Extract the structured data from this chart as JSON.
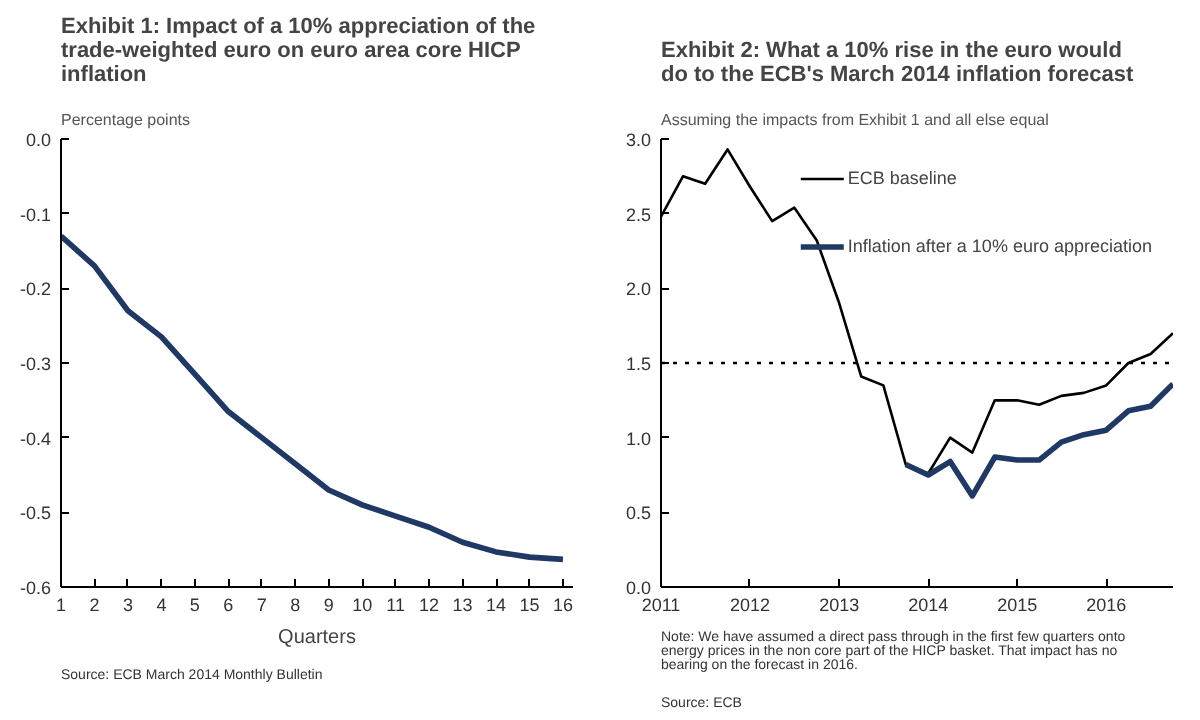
{
  "chart_data": [
    {
      "type": "line",
      "title": "Exhibit 1: Impact of a 10% appreciation of the trade-weighted euro on euro area core HICP inflation",
      "subtitle": "Percentage points",
      "xlabel": "Quarters",
      "x": [
        1,
        2,
        3,
        4,
        5,
        6,
        7,
        8,
        9,
        10,
        11,
        12,
        13,
        14,
        15,
        16
      ],
      "series": [
        {
          "color": "#1f3864",
          "values": [
            -0.13,
            -0.17,
            -0.23,
            -0.265,
            -0.315,
            -0.365,
            -0.4,
            -0.435,
            -0.47,
            -0.49,
            -0.505,
            -0.52,
            -0.54,
            -0.553,
            -0.56,
            -0.563
          ]
        }
      ],
      "xlim": [
        1,
        16.3
      ],
      "xticks": [
        1,
        2,
        3,
        4,
        5,
        6,
        7,
        8,
        9,
        10,
        11,
        12,
        13,
        14,
        15,
        16
      ],
      "ylim": [
        -0.6,
        0
      ],
      "yticks": [
        {
          "value": 0,
          "label": "0.0"
        },
        -0.1,
        -0.2,
        -0.3,
        -0.4,
        -0.5,
        -0.6
      ],
      "grid": false,
      "legend": false,
      "annotations": [
        "Source: ECB March 2014 Monthly Bulletin"
      ]
    },
    {
      "type": "line",
      "title": "Exhibit 2: What a 10% rise in the euro would do to the ECB's March 2014 inflation forecast",
      "subtitle": "Assuming the impacts from Exhibit 1 and all else equal",
      "x": [
        "2011-01",
        "2011-04",
        "2011-07",
        "2011-10",
        "2012-01",
        "2012-04",
        "2012-07",
        "2012-10",
        "2013-01",
        "2013-04",
        "2013-07",
        "2013-10",
        "2014-01",
        "2014-04",
        "2014-07",
        "2014-10",
        "2015-01",
        "2015-04",
        "2015-07",
        "2015-10",
        "2016-01",
        "2016-04",
        "2016-07",
        "2016-10"
      ],
      "series": [
        {
          "name": "ECB baseline",
          "color": "#000000",
          "values": [
            2.48,
            2.75,
            2.7,
            2.93,
            2.68,
            2.45,
            2.54,
            2.32,
            1.9,
            1.41,
            1.35,
            0.82,
            0.76,
            1.0,
            0.9,
            1.25,
            1.25,
            1.22,
            1.28,
            1.3,
            1.35,
            1.5,
            1.56,
            1.7
          ]
        },
        {
          "name": "Inflation after a 10% euro appreciation",
          "color": "#1f3864",
          "values": [
            null,
            null,
            null,
            null,
            null,
            null,
            null,
            null,
            null,
            null,
            null,
            0.82,
            0.75,
            0.84,
            0.61,
            0.87,
            0.85,
            0.85,
            0.97,
            1.02,
            1.05,
            1.18,
            1.21,
            1.36
          ]
        }
      ],
      "xlim": [
        "2011-01",
        "2016-10"
      ],
      "xticks": [
        {
          "value": "2011-01",
          "label": "2011"
        },
        {
          "value": "2012-01",
          "label": "2012"
        },
        {
          "value": "2013-01",
          "label": "2013"
        },
        {
          "value": "2014-01",
          "label": "2014"
        },
        {
          "value": "2015-01",
          "label": "2015"
        },
        {
          "value": "2016-01",
          "label": "2016"
        }
      ],
      "ylim": [
        0,
        3
      ],
      "yticks": [
        {
          "value": 0,
          "label": "0.0"
        },
        {
          "value": 0.5,
          "label": "0.5"
        },
        {
          "value": 1,
          "label": "1.0"
        },
        {
          "value": 1.5,
          "label": "1.5"
        },
        {
          "value": 2,
          "label": "2.0"
        },
        {
          "value": 2.5,
          "label": "2.5"
        },
        {
          "value": 3,
          "label": "3.0"
        }
      ],
      "ref_lines": [
        {
          "axis": "y",
          "value": 1.5,
          "color": "#000000",
          "line_style": "dotted"
        }
      ],
      "grid": false,
      "legend": "top right",
      "annotations": [
        "Note: We have assumed a direct pass through in the first few quarters onto energy prices in the non core part of the HICP basket. That impact has no bearing on the forecast in 2016.",
        "Source: ECB"
      ]
    }
  ]
}
